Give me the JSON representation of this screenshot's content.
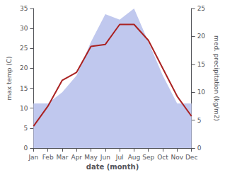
{
  "chart_data": {
    "type": "line",
    "categories": [
      "Jan",
      "Feb",
      "Mar",
      "Apr",
      "May",
      "Jun",
      "Jul",
      "Aug",
      "Sep",
      "Oct",
      "Nov",
      "Dec"
    ],
    "xlabel": "date (month)",
    "ylabel": "max temp (C)",
    "y2label": "med. precipitation (kg/m2)",
    "ylim": [
      0,
      35
    ],
    "yticks": [
      0,
      5,
      10,
      15,
      20,
      25,
      30,
      35
    ],
    "y2lim": [
      0,
      25
    ],
    "y2ticks": [
      0,
      5,
      10,
      15,
      20,
      25
    ],
    "grid": false,
    "series": [
      {
        "type": "area",
        "axis": "y2",
        "color": "#c0c8ee",
        "values": [
          8,
          8,
          10,
          13,
          19,
          24,
          23,
          25,
          19,
          13,
          8,
          8
        ]
      },
      {
        "type": "line",
        "color": "#aa2222",
        "values": [
          5.5,
          10.5,
          17.0,
          19.0,
          25.5,
          26.0,
          31.0,
          31.0,
          27.0,
          20.0,
          13.0,
          8.0
        ]
      }
    ]
  }
}
